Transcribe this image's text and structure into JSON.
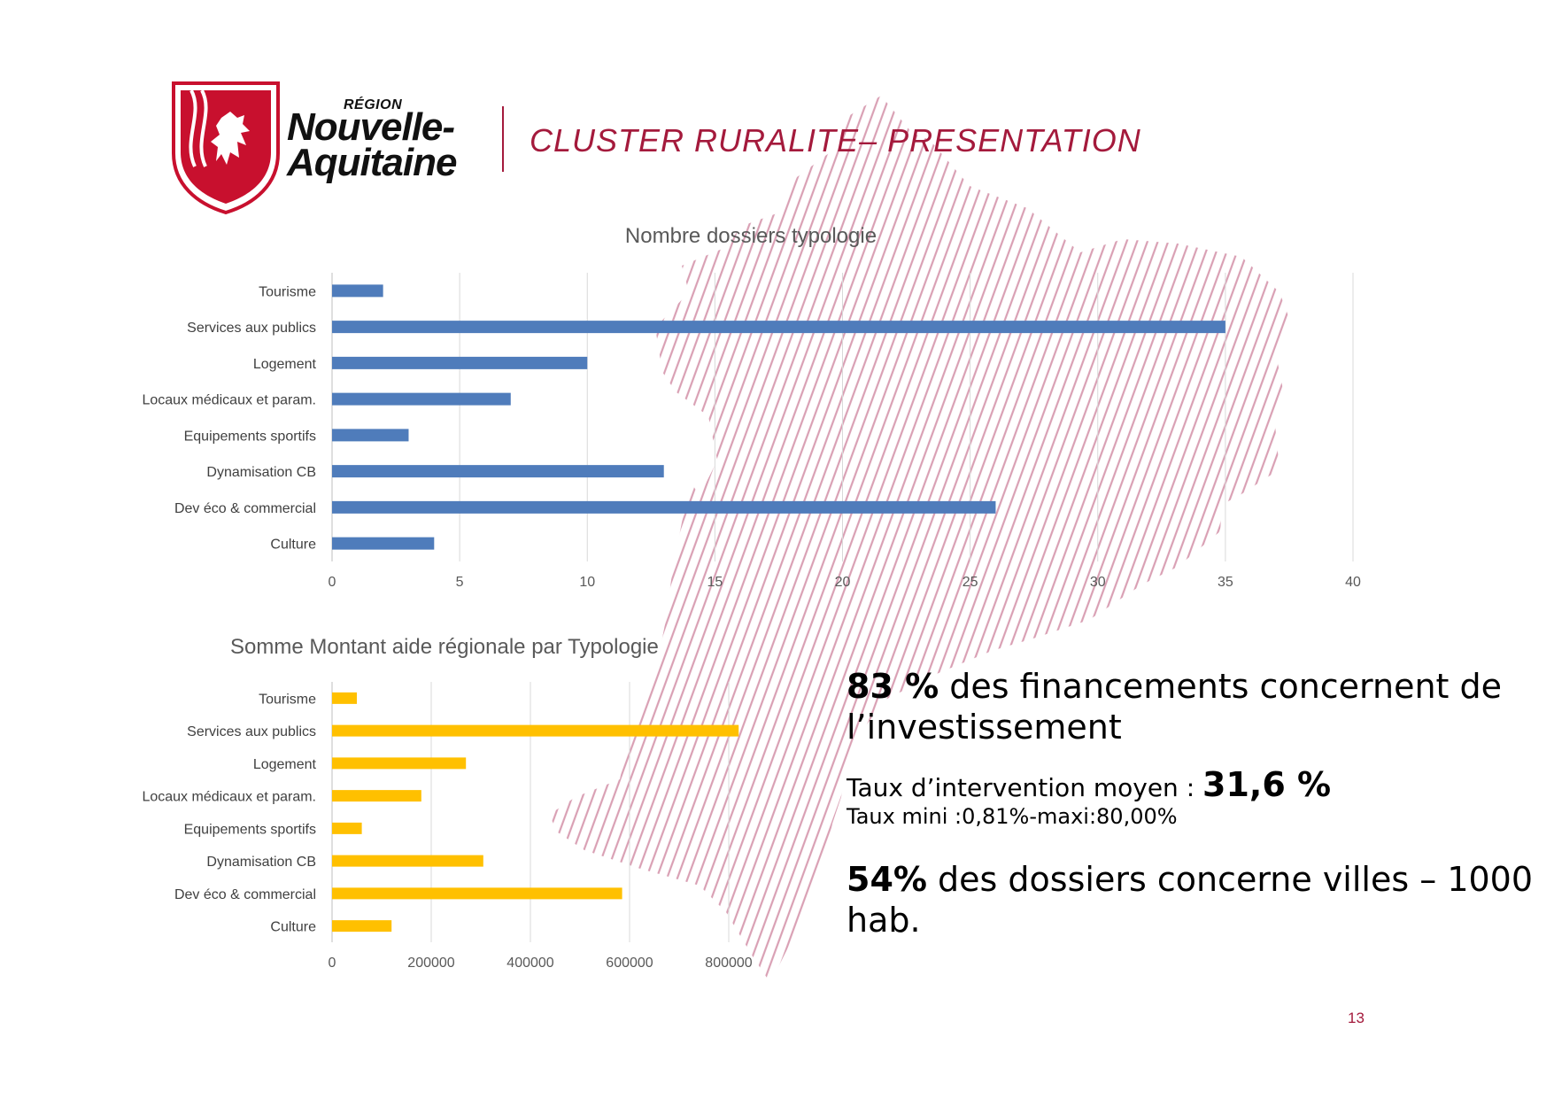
{
  "header": {
    "logo_region": "RÉGION",
    "logo_line1": "Nouvelle-",
    "logo_line2": "Aquitaine",
    "title": "CLUSTER RURALITE– PRESENTATION"
  },
  "colors": {
    "brand": "#a41a3c",
    "map_hatch": "#d9a0b4",
    "bar_blue": "#4f7cbb",
    "bar_yellow": "#ffc000",
    "grid": "#d9d9d9"
  },
  "chart_data": [
    {
      "type": "bar",
      "orientation": "horizontal",
      "title": "Nombre dossiers typologie",
      "categories": [
        "Tourisme",
        "Services aux publics",
        "Logement",
        "Locaux médicaux et param.",
        "Equipements sportifs",
        "Dynamisation CB",
        "Dev éco & commercial",
        "Culture"
      ],
      "values": [
        2,
        35,
        10,
        7,
        3,
        13,
        26,
        4
      ],
      "xlim": [
        0,
        40
      ],
      "xticks": [
        "0",
        "5",
        "10",
        "15",
        "20",
        "25",
        "30",
        "35",
        "40"
      ],
      "grid": true,
      "color": "#4f7cbb"
    },
    {
      "type": "bar",
      "orientation": "horizontal",
      "title": "Somme Montant aide régionale par Typologie",
      "categories": [
        "Tourisme",
        "Services aux publics",
        "Logement",
        "Locaux médicaux et param.",
        "Equipements sportifs",
        "Dynamisation CB",
        "Dev éco & commercial",
        "Culture"
      ],
      "values": [
        50000,
        820000,
        270000,
        180000,
        60000,
        305000,
        585000,
        120000
      ],
      "xlim": [
        0,
        800000
      ],
      "xticks": [
        "0",
        "200000",
        "400000",
        "600000",
        "800000"
      ],
      "grid": true,
      "color": "#ffc000"
    }
  ],
  "stats": {
    "s1_bold": "83 %",
    "s1_text": " des financements concernent de l’investissement",
    "s2_text": "Taux d’intervention moyen : ",
    "s2_bold": "31,6 %",
    "s2_small": "Taux mini :0,81%-maxi:80,00%",
    "s3_bold": "54%",
    "s3_text": " des dossiers concerne villes – 1000 hab."
  },
  "page_number": "13"
}
